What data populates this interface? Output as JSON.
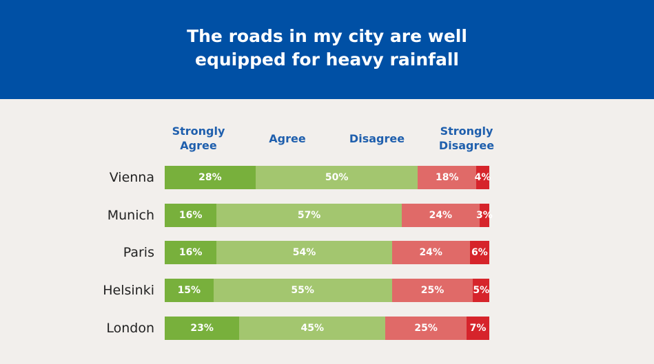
{
  "title": "The roads in my city are well equipped for heavy rainfall",
  "chart_data": {
    "type": "bar",
    "orientation": "horizontal",
    "stacked": true,
    "title": "The roads in my city are well equipped for heavy rainfall",
    "categories": [
      "Vienna",
      "Munich",
      "Paris",
      "Helsinki",
      "London"
    ],
    "series": [
      {
        "name": "Strongly Agree",
        "color": "#78b03c",
        "values": [
          28,
          16,
          16,
          15,
          23
        ],
        "labels": [
          "28%",
          "16%",
          "16%",
          "15%",
          "23%"
        ]
      },
      {
        "name": "Agree",
        "color": "#a3c66f",
        "values": [
          50,
          57,
          54,
          55,
          45
        ],
        "labels": [
          "50%",
          "57%",
          "54%",
          "55%",
          "45%"
        ]
      },
      {
        "name": "Disagree",
        "color": "#e06a68",
        "values": [
          18,
          24,
          24,
          25,
          25
        ],
        "labels": [
          "18%",
          "24%",
          "24%",
          "25%",
          "25%"
        ]
      },
      {
        "name": "Strongly Disagree",
        "color": "#d6242b",
        "values": [
          4,
          3,
          6,
          5,
          7
        ],
        "labels": [
          "4%",
          "3%",
          "6%",
          "5%",
          "7%"
        ]
      }
    ],
    "legend_placement": "top",
    "grid": false
  }
}
